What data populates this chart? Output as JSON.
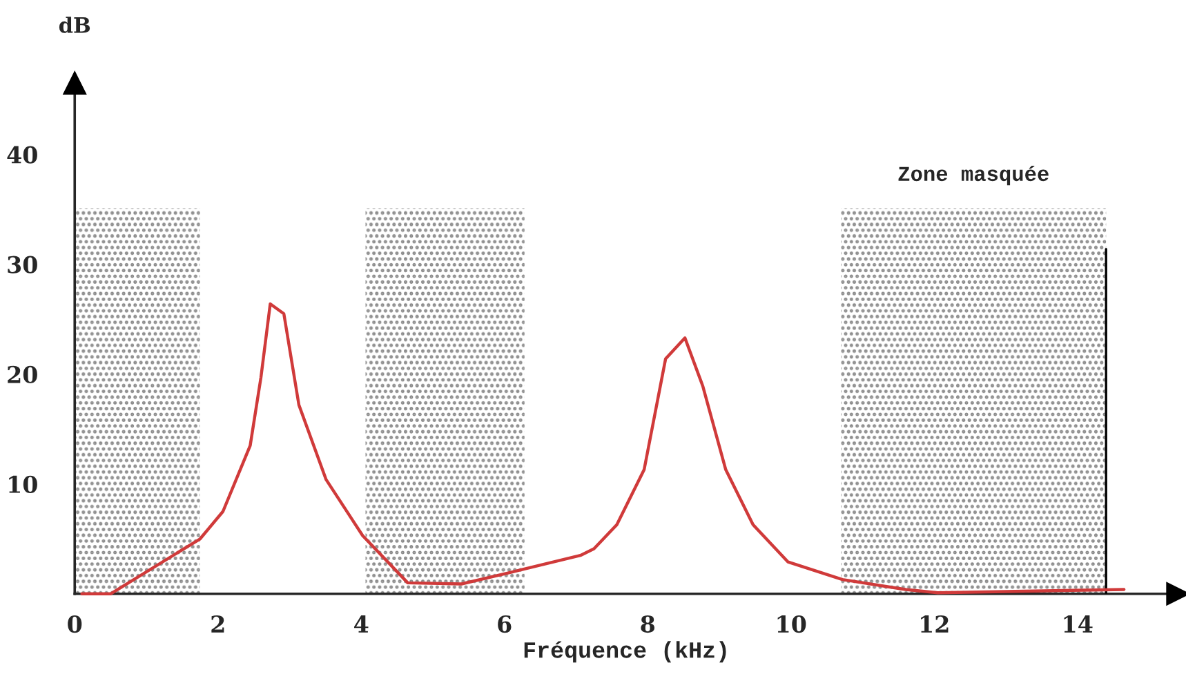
{
  "chart_data": {
    "type": "line",
    "xlabel": "Fréquence (kHz)",
    "ylabel": "dB",
    "x": [
      0.1,
      0.5,
      1.75,
      2.07,
      2.45,
      2.6,
      2.73,
      2.92,
      3.13,
      3.51,
      4.02,
      4.65,
      5.4,
      6.05,
      7.06,
      7.25,
      7.57,
      7.95,
      8.25,
      8.52,
      8.77,
      9.09,
      9.47,
      9.96,
      10.72,
      11.6,
      12.05,
      14.65
    ],
    "series": [
      {
        "color": "#d03a3a",
        "values": [
          0,
          0,
          5.0,
          7.5,
          13.5,
          19.7,
          26.4,
          25.5,
          17.2,
          10.4,
          5.3,
          1.0,
          0.9,
          1.9,
          3.5,
          4.1,
          6.3,
          11.3,
          21.4,
          23.3,
          18.9,
          11.3,
          6.3,
          2.9,
          1.3,
          0.4,
          0.1,
          0.4
        ]
      }
    ],
    "xlim": [
      0,
      15.4
    ],
    "ylim": [
      0,
      46.5
    ],
    "xticks": [
      0,
      2,
      4,
      6,
      8,
      10,
      12,
      14
    ],
    "yticks": [
      10,
      20,
      30,
      40
    ],
    "bands": [
      {
        "axis": "x",
        "from": 0,
        "to": 1.75,
        "color": "#888888"
      },
      {
        "axis": "x",
        "from": 4.06,
        "to": 6.28,
        "color": "#888888"
      },
      {
        "axis": "x",
        "from": 10.7,
        "to": 14.4,
        "label": "Zone masquée",
        "color": "#888888"
      }
    ],
    "ref_lines": [
      {
        "axis": "x",
        "value": 14.4,
        "color": "#000000"
      }
    ],
    "grid": false,
    "legend": false,
    "marker": "none",
    "line_style": "solid"
  }
}
